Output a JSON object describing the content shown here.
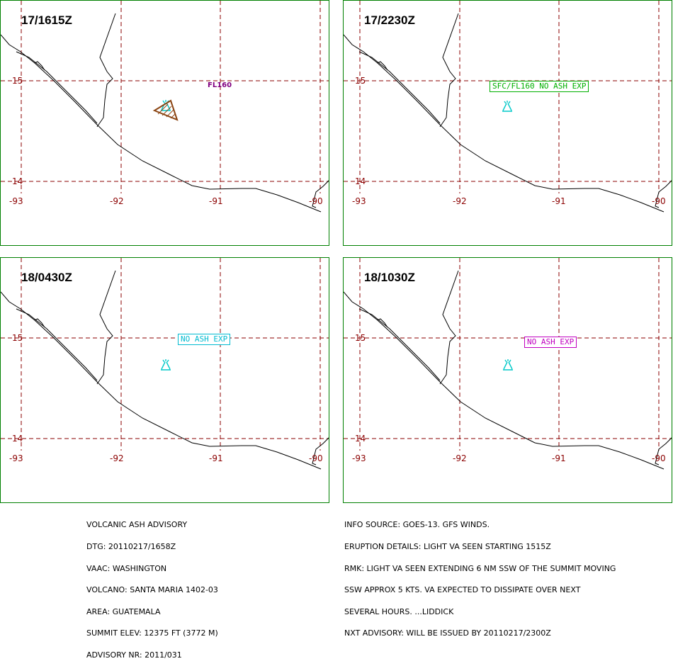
{
  "colors": {
    "frame": "#008000",
    "grid": "#8b0000",
    "coast": "#000000",
    "volcano": "#00c8c8",
    "ash_cloud": "#8b4513"
  },
  "lat_labels": [
    "15",
    "14"
  ],
  "lon_labels": [
    "-93",
    "-92",
    "-91",
    "-90"
  ],
  "panels": [
    {
      "time": "17/1615Z",
      "level_label": "FL160",
      "level_color": "#800080",
      "has_ash_polygon": true
    },
    {
      "time": "17/2230Z",
      "forecast_label": "SFC/FL160  NO  ASH  EXP",
      "forecast_color": "#00b000"
    },
    {
      "time": "18/0430Z",
      "forecast_label": "NO  ASH  EXP",
      "forecast_color": "#00bbd0"
    },
    {
      "time": "18/1030Z",
      "forecast_label": "NO  ASH  EXP",
      "forecast_color": "#c000c0"
    }
  ],
  "advisory_left": [
    "VOLCANIC ASH ADVISORY",
    "DTG: 20110217/1658Z",
    "VAAC: WASHINGTON",
    "VOLCANO: SANTA MARIA 1402-03",
    "AREA: GUATEMALA",
    "SUMMIT ELEV: 12375 FT (3772 M)",
    "ADVISORY NR: 2011/031"
  ],
  "advisory_right": [
    "INFO SOURCE: GOES-13. GFS WINDS.",
    "ERUPTION DETAILS: LIGHT VA SEEN STARTING 1515Z",
    "RMK: LIGHT VA SEEN EXTENDING 6 NM SSW OF THE SUMMIT MOVING",
    "SSW APPROX 5 KTS. VA EXPECTED TO DISSIPATE OVER NEXT",
    "SEVERAL HOURS. ...LIDDICK",
    "NXT ADVISORY: WILL BE ISSUED BY 20110217/2300Z"
  ]
}
